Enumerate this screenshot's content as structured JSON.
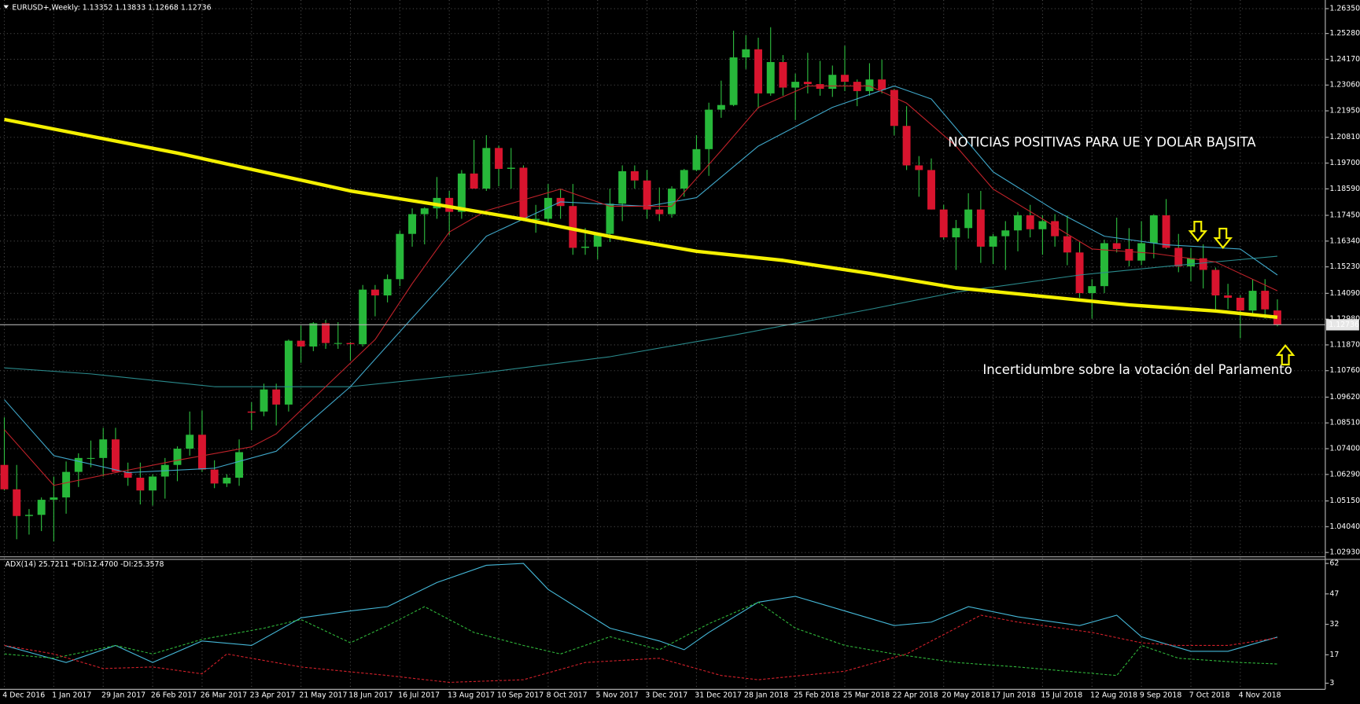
{
  "chart_data": [
    {
      "type": "candlestick",
      "title": "EURUSD+,Weekly:  1.13352 1.13833 1.12668 1.12736",
      "categories": [
        "4 Dec 2016",
        null,
        null,
        null,
        "1 Jan 2017",
        null,
        null,
        null,
        "29 Jan 2017",
        null,
        null,
        null,
        "26 Feb 2017",
        null,
        null,
        null,
        "26 Mar 2017",
        null,
        null,
        null,
        "23 Apr 2017",
        null,
        null,
        null,
        "21 May 2017",
        null,
        null,
        null,
        "18 Jun 2017",
        null,
        null,
        null,
        "16 Jul 2017",
        null,
        null,
        null,
        "13 Aug 2017",
        null,
        null,
        null,
        "10 Sep 2017",
        null,
        null,
        null,
        "8 Oct 2017",
        null,
        null,
        null,
        "5 Nov 2017",
        null,
        null,
        null,
        "3 Dec 2017",
        null,
        null,
        null,
        "31 Dec 2017",
        null,
        null,
        null,
        "28 Jan 2018",
        null,
        null,
        null,
        "25 Feb 2018",
        null,
        null,
        null,
        "25 Mar 2018",
        null,
        null,
        null,
        "22 Apr 2018",
        null,
        null,
        null,
        "20 May 2018",
        null,
        null,
        null,
        "17 Jun 2018",
        null,
        null,
        null,
        "15 Jul 2018",
        null,
        null,
        null,
        "12 Aug 2018",
        null,
        null,
        null,
        "9 Sep 2018",
        null,
        null,
        null,
        "7 Oct 2018",
        null,
        null,
        null,
        "4 Nov 2018",
        null,
        null,
        null
      ],
      "open": [
        1.067,
        1.0565,
        1.045,
        1.0455,
        1.052,
        1.053,
        1.064,
        1.07,
        1.07,
        1.078,
        1.064,
        1.0615,
        1.056,
        1.062,
        1.067,
        1.074,
        1.08,
        1.065,
        1.059,
        1.0615,
        1.09,
        1.09,
        1.0995,
        1.093,
        1.1205,
        1.118,
        1.128,
        1.1195,
        1.1195,
        1.119,
        1.1425,
        1.14,
        1.147,
        1.1665,
        1.175,
        1.1775,
        1.182,
        1.176,
        1.1925,
        1.186,
        1.2035,
        1.1945,
        1.195,
        1.1725,
        1.173,
        1.182,
        1.1785,
        1.1605,
        1.161,
        1.1665,
        1.1795,
        1.1935,
        1.1895,
        1.177,
        1.175,
        1.186,
        1.194,
        1.203,
        1.22,
        1.222,
        1.2425,
        1.246,
        1.227,
        1.2405,
        1.2295,
        1.232,
        1.231,
        1.229,
        1.235,
        1.232,
        1.228,
        1.233,
        1.2285,
        1.213,
        1.196,
        1.194,
        1.177,
        1.165,
        1.169,
        1.177,
        1.161,
        1.1655,
        1.168,
        1.1745,
        1.1685,
        1.172,
        1.1655,
        1.1585,
        1.141,
        1.144,
        1.1625,
        1.16,
        1.155,
        1.1625,
        1.1745,
        1.1605,
        1.1525,
        1.156,
        1.151,
        1.14,
        1.139,
        1.1335,
        1.142,
        1.13352
      ],
      "high": [
        1.0875,
        1.067,
        1.048,
        1.053,
        1.062,
        1.0685,
        1.072,
        1.0775,
        1.083,
        1.083,
        1.068,
        1.068,
        1.063,
        1.07,
        1.075,
        1.09,
        1.0905,
        1.069,
        1.063,
        1.078,
        1.094,
        1.102,
        1.102,
        1.121,
        1.127,
        1.1285,
        1.1295,
        1.1285,
        1.12,
        1.1445,
        1.1445,
        1.149,
        1.168,
        1.1775,
        1.178,
        1.191,
        1.185,
        1.194,
        1.207,
        1.209,
        1.2045,
        1.2035,
        1.196,
        1.179,
        1.188,
        1.186,
        1.188,
        1.169,
        1.167,
        1.186,
        1.196,
        1.196,
        1.194,
        1.1865,
        1.187,
        1.1945,
        1.209,
        1.223,
        1.2325,
        1.254,
        1.252,
        1.251,
        1.2555,
        1.2435,
        1.2355,
        1.2445,
        1.241,
        1.239,
        1.2475,
        1.233,
        1.24,
        1.2415,
        1.229,
        1.2215,
        1.2,
        1.199,
        1.179,
        1.1725,
        1.184,
        1.185,
        1.1665,
        1.172,
        1.176,
        1.179,
        1.1745,
        1.175,
        1.1745,
        1.163,
        1.147,
        1.164,
        1.1735,
        1.169,
        1.172,
        1.175,
        1.1815,
        1.1665,
        1.1605,
        1.162,
        1.152,
        1.145,
        1.14,
        1.147,
        1.147,
        1.13833
      ],
      "low": [
        1.056,
        1.035,
        1.037,
        1.0385,
        1.034,
        1.046,
        1.0575,
        1.066,
        1.062,
        1.064,
        1.058,
        1.05,
        1.0495,
        1.0525,
        1.06,
        1.071,
        1.064,
        1.057,
        1.0575,
        1.058,
        1.082,
        1.088,
        1.084,
        1.09,
        1.111,
        1.116,
        1.117,
        1.117,
        1.112,
        1.118,
        1.131,
        1.137,
        1.144,
        1.161,
        1.162,
        1.173,
        1.166,
        1.173,
        1.186,
        1.185,
        1.187,
        1.186,
        1.172,
        1.167,
        1.1715,
        1.173,
        1.1575,
        1.1575,
        1.1555,
        1.163,
        1.172,
        1.186,
        1.173,
        1.172,
        1.1735,
        1.1825,
        1.1935,
        1.1915,
        1.2165,
        1.2215,
        1.2375,
        1.2205,
        1.226,
        1.226,
        1.2155,
        1.227,
        1.226,
        1.2255,
        1.228,
        1.2215,
        1.226,
        1.227,
        1.209,
        1.194,
        1.1825,
        1.177,
        1.164,
        1.151,
        1.1645,
        1.154,
        1.1535,
        1.151,
        1.159,
        1.165,
        1.1575,
        1.161,
        1.153,
        1.139,
        1.13,
        1.141,
        1.1585,
        1.1525,
        1.153,
        1.156,
        1.16,
        1.15,
        1.146,
        1.143,
        1.1335,
        1.134,
        1.1215,
        1.1315,
        1.13,
        1.12668
      ],
      "close": [
        1.0565,
        1.045,
        1.0455,
        1.052,
        1.053,
        1.064,
        1.07,
        1.07,
        1.078,
        1.064,
        1.0615,
        1.056,
        1.062,
        1.067,
        1.074,
        1.08,
        1.065,
        1.059,
        1.0615,
        1.0725,
        1.0895,
        1.0995,
        1.093,
        1.1205,
        1.118,
        1.128,
        1.1195,
        1.1195,
        1.119,
        1.1425,
        1.14,
        1.147,
        1.1665,
        1.175,
        1.1775,
        1.182,
        1.176,
        1.1925,
        1.186,
        1.2035,
        1.1945,
        1.195,
        1.1725,
        1.173,
        1.182,
        1.1785,
        1.1605,
        1.161,
        1.1665,
        1.1795,
        1.1935,
        1.1895,
        1.177,
        1.175,
        1.186,
        1.194,
        1.203,
        1.22,
        1.222,
        1.2425,
        1.246,
        1.227,
        1.2405,
        1.2295,
        1.232,
        1.231,
        1.229,
        1.235,
        1.232,
        1.228,
        1.233,
        1.2285,
        1.213,
        1.196,
        1.194,
        1.177,
        1.165,
        1.169,
        1.177,
        1.161,
        1.1655,
        1.168,
        1.1745,
        1.1685,
        1.172,
        1.1655,
        1.1585,
        1.141,
        1.144,
        1.1625,
        1.16,
        1.155,
        1.1625,
        1.1745,
        1.1605,
        1.1525,
        1.156,
        1.151,
        1.14,
        1.139,
        1.1335,
        1.142,
        1.134,
        1.12736
      ],
      "bull_color": "#27b83a",
      "bear_color": "#d8142e",
      "wick_color": "#2fc040",
      "overlays": [
        {
          "color": "#2a8a8c",
          "width": 1,
          "x": [
            0,
            7,
            17,
            28,
            38,
            49,
            59,
            70,
            77,
            87,
            94,
            103
          ],
          "values": [
            1.1088,
            1.1062,
            1.1007,
            1.1007,
            1.1062,
            1.1136,
            1.1229,
            1.134,
            1.1414,
            1.1488,
            1.1525,
            1.1569
          ]
        },
        {
          "color": "#3fa7c9",
          "width": 1,
          "x": [
            0,
            4,
            10,
            17,
            22,
            28,
            33,
            39,
            45,
            52,
            56,
            61,
            67,
            72,
            75,
            80,
            85,
            89,
            94,
            100,
            103
          ],
          "values": [
            1.0951,
            1.071,
            1.0637,
            1.0656,
            1.0729,
            1.1007,
            1.1303,
            1.1655,
            1.1803,
            1.1784,
            1.1821,
            1.2043,
            1.221,
            1.2302,
            1.2246,
            1.1932,
            1.1766,
            1.1655,
            1.1618,
            1.16,
            1.1488
          ]
        },
        {
          "color": "#c0222a",
          "width": 1,
          "x": [
            0,
            4,
            9,
            14,
            20,
            22,
            26,
            30,
            33,
            36,
            39,
            45,
            49,
            54,
            58,
            61,
            65,
            70,
            73,
            77,
            80,
            84,
            88,
            93,
            98,
            103
          ],
          "values": [
            1.0822,
            1.0582,
            1.0637,
            1.069,
            1.0748,
            1.0804,
            1.1007,
            1.121,
            1.1451,
            1.1673,
            1.1765,
            1.1858,
            1.1784,
            1.1784,
            1.2024,
            1.2209,
            1.2302,
            1.2302,
            1.2228,
            1.2043,
            1.1858,
            1.1729,
            1.16,
            1.1581,
            1.1544,
            1.142
          ]
        },
        {
          "color": "#f4f000",
          "width": 4,
          "x": [
            0,
            14,
            28,
            35,
            42,
            49,
            56,
            63,
            70,
            77,
            84,
            91,
            98,
            103
          ],
          "values": [
            1.2158,
            1.2013,
            1.185,
            1.1791,
            1.1728,
            1.1654,
            1.159,
            1.1551,
            1.1495,
            1.1433,
            1.1396,
            1.1359,
            1.1333,
            1.1306
          ]
        }
      ],
      "current_price": 1.12736,
      "ylim": [
        1.02744,
        1.26611
      ],
      "yticks": [
        {
          "value": 1.2635,
          "label": "1.26350"
        },
        {
          "value": 1.2528,
          "label": "1.25280"
        },
        {
          "value": 1.2417,
          "label": "1.24170"
        },
        {
          "value": 1.2306,
          "label": "1.23060"
        },
        {
          "value": 1.2195,
          "label": "1.21950"
        },
        {
          "value": 1.2081,
          "label": "1.20810"
        },
        {
          "value": 1.197,
          "label": "1.19700"
        },
        {
          "value": 1.1859,
          "label": "1.18590"
        },
        {
          "value": 1.1745,
          "label": "1.17450"
        },
        {
          "value": 1.1634,
          "label": "1.16340"
        },
        {
          "value": 1.1523,
          "label": "1.15230"
        },
        {
          "value": 1.1409,
          "label": "1.14090"
        },
        {
          "value": 1.1298,
          "label": "1.12980"
        },
        {
          "value": 1.1187,
          "label": "1.11870"
        },
        {
          "value": 1.1076,
          "label": "1.10760"
        },
        {
          "value": 1.0962,
          "label": "1.09620"
        },
        {
          "value": 1.0851,
          "label": "1.08510"
        },
        {
          "value": 1.074,
          "label": "1.07400"
        },
        {
          "value": 1.0629,
          "label": "1.06290"
        },
        {
          "value": 1.0515,
          "label": "1.05150"
        },
        {
          "value": 1.0404,
          "label": "1.04040"
        },
        {
          "value": 1.0293,
          "label": "1.02930"
        }
      ],
      "grid": true,
      "annotations": [
        {
          "text": "NOTICIAS POSITIVAS PARA UE Y DOLAR BAJSITA",
          "color": "#e8142c"
        },
        {
          "text": "Incertidumbre sobre la votación del Parlamento",
          "color": "#d8244c"
        }
      ]
    },
    {
      "type": "line",
      "title": "ADX(14) 25.7211 +DI:12.4700 -DI:25.3578",
      "series": [
        {
          "color": "#45b8d8",
          "dash": false,
          "x": [
            0,
            5,
            9,
            12,
            16,
            20,
            24,
            28,
            31,
            35,
            39,
            42,
            44,
            49,
            53,
            55,
            57,
            61,
            64,
            68,
            72,
            75,
            78,
            82,
            87,
            90,
            92,
            96,
            99,
            103
          ],
          "values": [
            21.6,
            13.2,
            21.6,
            13.2,
            23.8,
            21.6,
            35.2,
            38.6,
            40.7,
            52.6,
            61.1,
            62,
            49.2,
            30.1,
            23.8,
            19.5,
            28,
            42.9,
            45.8,
            38.6,
            31.4,
            33.1,
            40.7,
            35.7,
            31.4,
            36.5,
            25.9,
            18.7,
            18.7,
            25.7211
          ]
        },
        {
          "color": "#2fb63a",
          "dash": true,
          "x": [
            0,
            4,
            9,
            12,
            16,
            21,
            24,
            28,
            31,
            34,
            38,
            42,
            45,
            49,
            53,
            57,
            61,
            64,
            68,
            72,
            77,
            82,
            90,
            92,
            95,
            100,
            103
          ],
          "values": [
            17.4,
            15.3,
            21.6,
            17.4,
            24.6,
            30.1,
            34.4,
            22.9,
            31.4,
            40.7,
            28,
            21.6,
            17.4,
            25.9,
            19.5,
            32.3,
            42.9,
            30.1,
            21.6,
            17.4,
            13.2,
            11,
            6.8,
            21.6,
            15.3,
            13.2,
            12.47
          ]
        },
        {
          "color": "#d3202a",
          "dash": true,
          "x": [
            0,
            4,
            8,
            12,
            16,
            18,
            24,
            31,
            36,
            42,
            47,
            53,
            58,
            61,
            68,
            73,
            79,
            82,
            88,
            92,
            95,
            99,
            103
          ],
          "values": [
            21.6,
            17.4,
            10.2,
            11,
            7.6,
            17.4,
            11,
            6.8,
            3.4,
            4.7,
            13.2,
            15.3,
            6.8,
            4.7,
            8.9,
            17.4,
            36.5,
            33.1,
            28,
            22.9,
            21.6,
            21.6,
            25.3578
          ]
        }
      ],
      "ylim": [
        0,
        64
      ],
      "yticks": [
        62,
        47,
        32,
        17,
        3
      ]
    }
  ]
}
